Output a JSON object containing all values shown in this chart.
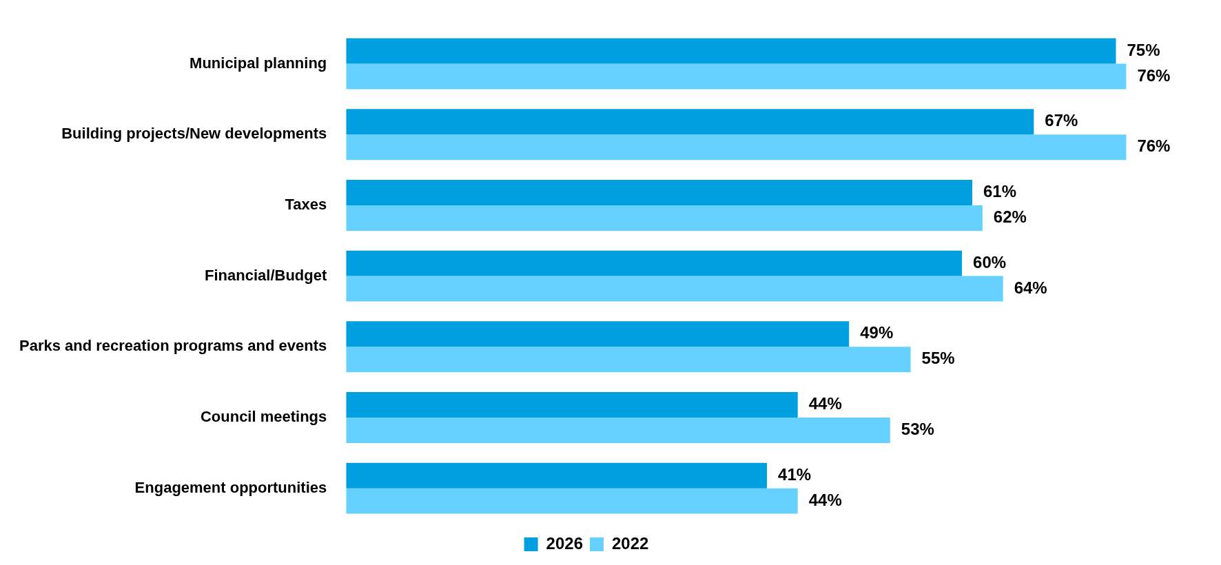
{
  "chart_data": {
    "type": "bar",
    "orientation": "horizontal",
    "categories": [
      "Municipal planning",
      "Building projects/New developments",
      "Taxes",
      "Financial/Budget",
      "Parks and recreation programs and events",
      "Council meetings",
      "Engagement opportunities"
    ],
    "series": [
      {
        "name": "2026",
        "color": "#009fdf",
        "values": [
          75,
          67,
          61,
          60,
          49,
          44,
          41
        ],
        "value_labels": [
          "75%",
          "67%",
          "61%",
          "60%",
          "49%",
          "44%",
          "41%"
        ]
      },
      {
        "name": "2022",
        "color": "#66d1ff",
        "values": [
          76,
          76,
          62,
          64,
          55,
          53,
          44
        ],
        "value_labels": [
          "76%",
          "76%",
          "62%",
          "64%",
          "55%",
          "53%",
          "44%"
        ]
      }
    ],
    "tick_labels": "y",
    "grid": false,
    "legend": "bottom"
  }
}
